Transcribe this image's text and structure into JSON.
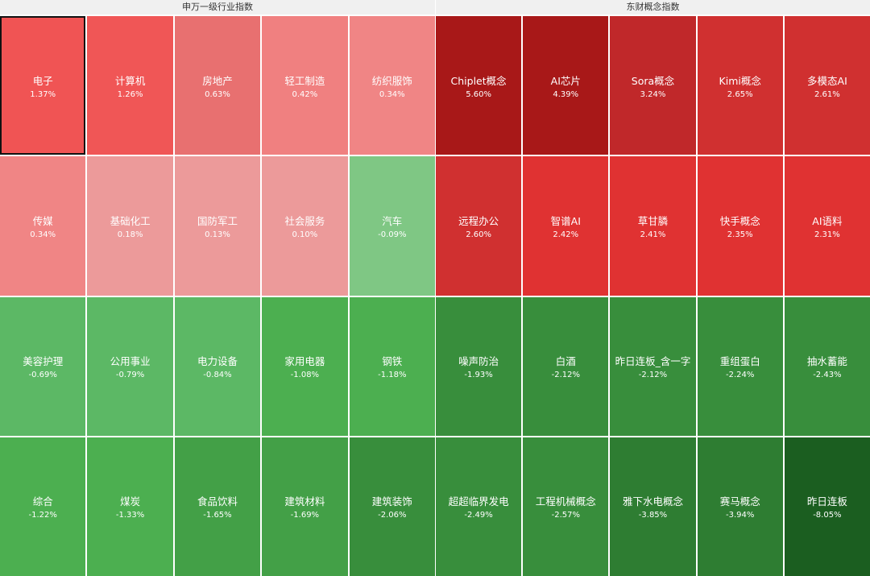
{
  "panels": [
    {
      "title": "申万一级行业指数",
      "tiles": [
        {
          "name": "电子",
          "change": "1.37%",
          "color": "#f05454",
          "selected": true
        },
        {
          "name": "计算机",
          "change": "1.26%",
          "color": "#f05656"
        },
        {
          "name": "房地产",
          "change": "0.63%",
          "color": "#e87070"
        },
        {
          "name": "轻工制造",
          "change": "0.42%",
          "color": "#f08080"
        },
        {
          "name": "纺织服饰",
          "change": "0.34%",
          "color": "#f08585"
        },
        {
          "name": "传媒",
          "change": "0.34%",
          "color": "#f08585"
        },
        {
          "name": "基础化工",
          "change": "0.18%",
          "color": "#ec9a9a"
        },
        {
          "name": "国防军工",
          "change": "0.13%",
          "color": "#ec9a9a"
        },
        {
          "name": "社会服务",
          "change": "0.10%",
          "color": "#ec9a9a"
        },
        {
          "name": "汽车",
          "change": "-0.09%",
          "color": "#7fc784"
        },
        {
          "name": "美容护理",
          "change": "-0.69%",
          "color": "#5cb865"
        },
        {
          "name": "公用事业",
          "change": "-0.79%",
          "color": "#5cb865"
        },
        {
          "name": "电力设备",
          "change": "-0.84%",
          "color": "#5cb865"
        },
        {
          "name": "家用电器",
          "change": "-1.08%",
          "color": "#4caf50"
        },
        {
          "name": "钢铁",
          "change": "-1.18%",
          "color": "#4caf50"
        },
        {
          "name": "综合",
          "change": "-1.22%",
          "color": "#4caf50"
        },
        {
          "name": "煤炭",
          "change": "-1.33%",
          "color": "#4caf50"
        },
        {
          "name": "食品饮料",
          "change": "-1.65%",
          "color": "#43a047"
        },
        {
          "name": "建筑材料",
          "change": "-1.69%",
          "color": "#43a047"
        },
        {
          "name": "建筑装饰",
          "change": "-2.06%",
          "color": "#388e3c"
        }
      ]
    },
    {
      "title": "东财概念指数",
      "tiles": [
        {
          "name": "Chiplet概念",
          "change": "5.60%",
          "color": "#a81818"
        },
        {
          "name": "AI芯片",
          "change": "4.39%",
          "color": "#a81818"
        },
        {
          "name": "Sora概念",
          "change": "3.24%",
          "color": "#c0282a"
        },
        {
          "name": "Kimi概念",
          "change": "2.65%",
          "color": "#d03030"
        },
        {
          "name": "多模态AI",
          "change": "2.61%",
          "color": "#d03030"
        },
        {
          "name": "远程办公",
          "change": "2.60%",
          "color": "#d03030"
        },
        {
          "name": "智谱AI",
          "change": "2.42%",
          "color": "#e03232"
        },
        {
          "name": "草甘膦",
          "change": "2.41%",
          "color": "#e03232"
        },
        {
          "name": "快手概念",
          "change": "2.35%",
          "color": "#e03232"
        },
        {
          "name": "AI语料",
          "change": "2.31%",
          "color": "#e03232"
        },
        {
          "name": "噪声防治",
          "change": "-1.93%",
          "color": "#388e3c"
        },
        {
          "name": "白酒",
          "change": "-2.12%",
          "color": "#388e3c"
        },
        {
          "name": "昨日连板_含一字",
          "change": "-2.12%",
          "color": "#388e3c"
        },
        {
          "name": "重组蛋白",
          "change": "-2.24%",
          "color": "#388e3c"
        },
        {
          "name": "抽水蓄能",
          "change": "-2.43%",
          "color": "#388e3c"
        },
        {
          "name": "超超临界发电",
          "change": "-2.49%",
          "color": "#388e3c"
        },
        {
          "name": "工程机械概念",
          "change": "-2.57%",
          "color": "#388e3c"
        },
        {
          "name": "雅下水电概念",
          "change": "-3.85%",
          "color": "#2e7d32"
        },
        {
          "name": "赛马概念",
          "change": "-3.94%",
          "color": "#2e7d32"
        },
        {
          "name": "昨日连板",
          "change": "-8.05%",
          "color": "#1b5e20"
        }
      ]
    }
  ]
}
